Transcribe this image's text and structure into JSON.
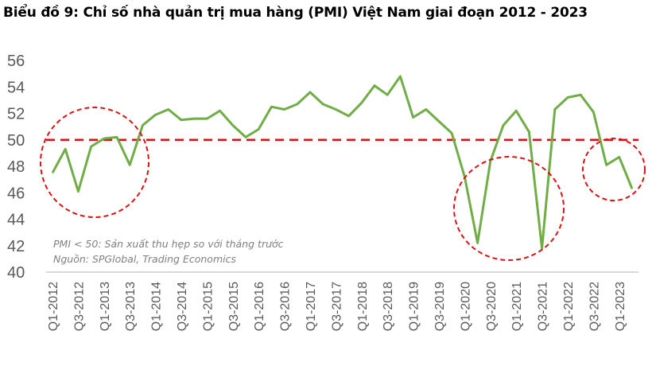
{
  "title": "Biểu đồ 9: Chỉ số nhà quản trị mua hàng (PMI) Việt Nam giai đoạn 2012 - 2023",
  "notes": {
    "line1": "PMI < 50: Sản xuất thu hẹp so với tháng trước",
    "line2": "Nguồn: SPGlobal, Trading Economics"
  },
  "colors": {
    "line": "#70ad47",
    "threshold": "#e01010",
    "axis": "#d9d9d9",
    "tick_text": "#595959"
  },
  "chart_data": {
    "type": "line",
    "title": "Biểu đồ 9: Chỉ số nhà quản trị mua hàng (PMI) Việt Nam giai đoạn 2012 - 2023",
    "xlabel": "",
    "ylabel": "",
    "ylim": [
      40,
      56
    ],
    "yticks": [
      40,
      42,
      44,
      46,
      48,
      50,
      52,
      54,
      56
    ],
    "grid": false,
    "legend": "none",
    "x": [
      "Q1-2012",
      "Q2-2012",
      "Q3-2012",
      "Q4-2012",
      "Q1-2013",
      "Q2-2013",
      "Q3-2013",
      "Q4-2013",
      "Q1-2014",
      "Q2-2014",
      "Q3-2014",
      "Q4-2014",
      "Q1-2015",
      "Q2-2015",
      "Q3-2015",
      "Q4-2015",
      "Q1-2016",
      "Q2-2016",
      "Q3-2016",
      "Q4-2016",
      "Q1-2017",
      "Q2-2017",
      "Q3-2017",
      "Q4-2017",
      "Q1-2018",
      "Q2-2018",
      "Q3-2018",
      "Q4-2018",
      "Q1-2019",
      "Q2-2019",
      "Q3-2019",
      "Q4-2019",
      "Q1-2020",
      "Q2-2020",
      "Q3-2020",
      "Q4-2020",
      "Q1-2021",
      "Q2-2021",
      "Q3-2021",
      "Q4-2021",
      "Q1-2022",
      "Q2-2022",
      "Q3-2022",
      "Q4-2022",
      "Q1-2023",
      "Q2-2023"
    ],
    "xtick_labels": [
      "Q1-2012",
      "Q3-2012",
      "Q1-2013",
      "Q3-2013",
      "Q1-2014",
      "Q3-2014",
      "Q1-2015",
      "Q3-2015",
      "Q1-2016",
      "Q3-2016",
      "Q1-2017",
      "Q3-2017",
      "Q1-2018",
      "Q3-2018",
      "Q1-2019",
      "Q3-2019",
      "Q1-2020",
      "Q3-2020",
      "Q1-2021",
      "Q3-2021",
      "Q1-2022",
      "Q3-2022",
      "Q1-2023"
    ],
    "series": [
      {
        "name": "PMI",
        "values": [
          47.5,
          49.3,
          46.1,
          49.5,
          50.1,
          50.2,
          48.1,
          51.1,
          51.9,
          52.3,
          51.5,
          51.6,
          51.6,
          52.2,
          51.1,
          50.2,
          50.8,
          52.5,
          52.3,
          52.7,
          53.6,
          52.7,
          52.3,
          51.8,
          52.8,
          54.1,
          53.4,
          54.8,
          51.7,
          52.3,
          51.4,
          50.5,
          47.2,
          42.2,
          48.4,
          51.1,
          52.2,
          50.6,
          41.8,
          52.3,
          53.2,
          53.4,
          52.1,
          48.1,
          48.7,
          46.3
        ]
      }
    ],
    "reference_line": {
      "y": 50,
      "style": "dashed",
      "color": "#e01010"
    },
    "annotations": [
      {
        "type": "dashed-circle",
        "around": "Q1-2012 to Q4-2013"
      },
      {
        "type": "dashed-circle",
        "around": "Q2-2020 to Q3-2021"
      },
      {
        "type": "dashed-circle",
        "around": "Q4-2022 to Q2-2023"
      },
      {
        "type": "text",
        "text": "PMI < 50: Sản xuất thu hẹp so với tháng trước"
      },
      {
        "type": "text",
        "text": "Nguồn: SPGlobal, Trading Economics"
      }
    ]
  }
}
